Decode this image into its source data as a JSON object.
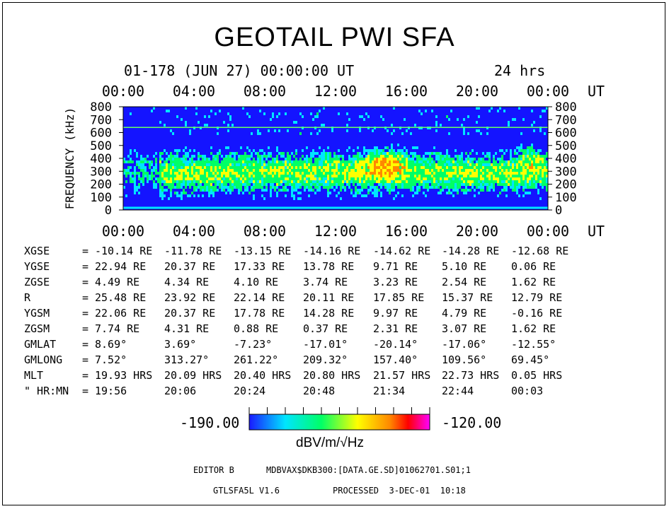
{
  "title": "GEOTAIL PWI SFA",
  "date_line": "01-178 (JUN 27) 00:00:00 UT",
  "duration": "24 hrs",
  "chart_data": {
    "type": "heatmap",
    "title": "GEOTAIL PWI SFA",
    "xlabel": "UT",
    "ylabel": "FREQUENCY (kHz)",
    "x_ticks": [
      "00:00",
      "04:00",
      "08:00",
      "12:00",
      "16:00",
      "20:00",
      "00:00"
    ],
    "x_range_hours": [
      0,
      24
    ],
    "y_ticks": [
      0,
      100,
      200,
      300,
      400,
      500,
      600,
      700,
      800
    ],
    "ylim": [
      0,
      800
    ],
    "colorbar": {
      "min": "-190.00",
      "max": "-120.00",
      "unit": "dBV/m/√Hz",
      "colors": [
        "#1a1aff",
        "#00e5ff",
        "#00ff66",
        "#ffff00",
        "#ff8800",
        "#ff0000",
        "#ff00ff"
      ]
    },
    "background_color": "#1414ff"
  },
  "params": [
    {
      "name": "XGSE",
      "values": [
        "-10.14 RE",
        "-11.78 RE",
        "-13.15 RE",
        "-14.16 RE",
        "-14.62 RE",
        "-14.28 RE",
        "-12.68 RE"
      ]
    },
    {
      "name": "YGSE",
      "values": [
        "22.94 RE",
        "20.37 RE",
        "17.33 RE",
        "13.78 RE",
        "9.71 RE",
        "5.10 RE",
        "0.06 RE"
      ]
    },
    {
      "name": "ZGSE",
      "values": [
        "4.49 RE",
        "4.34 RE",
        "4.10 RE",
        "3.74 RE",
        "3.23 RE",
        "2.54 RE",
        "1.62 RE"
      ]
    },
    {
      "name": "R",
      "values": [
        "25.48 RE",
        "23.92 RE",
        "22.14 RE",
        "20.11 RE",
        "17.85 RE",
        "15.37 RE",
        "12.79 RE"
      ]
    },
    {
      "name": "YGSM",
      "values": [
        "22.06 RE",
        "20.37 RE",
        "17.78 RE",
        "14.28 RE",
        "9.97 RE",
        "4.79 RE",
        "-0.16 RE"
      ]
    },
    {
      "name": "ZGSM",
      "values": [
        "7.74 RE",
        "4.31 RE",
        "0.88 RE",
        "0.37 RE",
        "2.31 RE",
        "3.07 RE",
        "1.62 RE"
      ]
    },
    {
      "name": "GMLAT",
      "values": [
        "8.69°",
        "3.69°",
        "-7.23°",
        "-17.01°",
        "-20.14°",
        "-17.06°",
        "-12.55°"
      ]
    },
    {
      "name": "GMLONG",
      "values": [
        "7.52°",
        "313.27°",
        "261.22°",
        "209.32°",
        "157.40°",
        "109.56°",
        "69.45°"
      ]
    },
    {
      "name": "MLT",
      "values": [
        "19.93 HRS",
        "20.09 HRS",
        "20.40 HRS",
        "20.80 HRS",
        "21.57 HRS",
        "22.73 HRS",
        "0.05 HRS"
      ]
    },
    {
      "name": "\" HR:MN",
      "values": [
        "19:56",
        "20:06",
        "20:24",
        "20:48",
        "21:34",
        "22:44",
        "00:03"
      ]
    }
  ],
  "footer": {
    "editor": "EDITOR B",
    "path": "MDBVAX$DKB300:[DATA.GE.SD]01062701.S01;1",
    "program": "GTLSFA5L V1.6",
    "processed": "PROCESSED  3-DEC-01  10:18"
  }
}
